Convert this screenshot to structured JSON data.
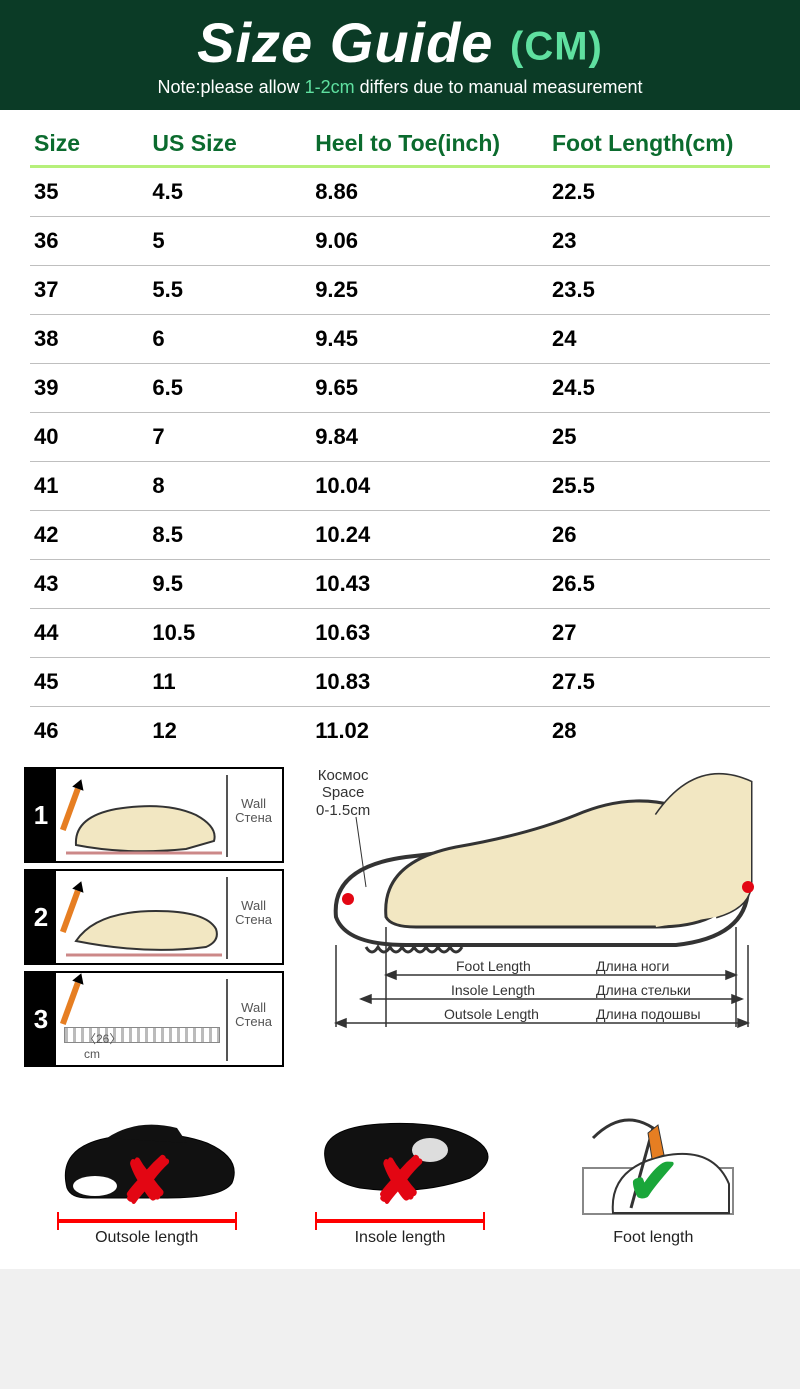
{
  "colors": {
    "header_bg": "#0b3b26",
    "header_fg": "#ffffff",
    "unit_fg": "#5fe0a0",
    "accent_green": "#5fe0a0",
    "th_color": "#0b6b2e",
    "th_underline": "#b6f07a",
    "row_border": "#bfbfbf",
    "x_red": "#e30613",
    "v_green": "#1aa63a",
    "foot_fill": "#f2e7c2",
    "shoe_outline": "#333333",
    "insole_fill": "#111111"
  },
  "header": {
    "title": "Size Guide",
    "unit": "(CM)",
    "note_prefix": "Note:please allow ",
    "note_accent": "1-2cm",
    "note_suffix": " differs due to manual measurement"
  },
  "table": {
    "columns": [
      "Size",
      "US Size",
      "Heel to Toe(inch)",
      "Foot Length(cm)"
    ],
    "col_widths": [
      "16%",
      "22%",
      "32%",
      "30%"
    ],
    "rows": [
      [
        "35",
        "4.5",
        "8.86",
        "22.5"
      ],
      [
        "36",
        "5",
        "9.06",
        "23"
      ],
      [
        "37",
        "5.5",
        "9.25",
        "23.5"
      ],
      [
        "38",
        "6",
        "9.45",
        "24"
      ],
      [
        "39",
        "6.5",
        "9.65",
        "24.5"
      ],
      [
        "40",
        "7",
        "9.84",
        "25"
      ],
      [
        "41",
        "8",
        "10.04",
        "25.5"
      ],
      [
        "42",
        "8.5",
        "10.24",
        "26"
      ],
      [
        "43",
        "9.5",
        "10.43",
        "26.5"
      ],
      [
        "44",
        "10.5",
        "10.63",
        "27"
      ],
      [
        "45",
        "11",
        "10.83",
        "27.5"
      ],
      [
        "46",
        "12",
        "11.02",
        "28"
      ]
    ]
  },
  "diagrams": {
    "steps": [
      {
        "num": "1",
        "wall_en": "Wall",
        "wall_ru": "Стена"
      },
      {
        "num": "2",
        "wall_en": "Wall",
        "wall_ru": "Стена"
      },
      {
        "num": "3",
        "wall_en": "Wall",
        "wall_ru": "Стена",
        "tape_cm": "26"
      }
    ],
    "space_ru": "Космос",
    "space_en": "Space",
    "space_range": "0-1.5cm",
    "labels": {
      "foot_en": "Foot Length",
      "foot_ru": "Длина ноги",
      "insole_en": "Insole Length",
      "insole_ru": "Длина стельки",
      "outsole_en": "Outsole Length",
      "outsole_ru": "Длина подошвы"
    }
  },
  "bottom": {
    "items": [
      {
        "kind": "outsole",
        "mark": "x",
        "caption": "Outsole length"
      },
      {
        "kind": "insole",
        "mark": "x",
        "caption": "Insole length"
      },
      {
        "kind": "foot",
        "mark": "v",
        "caption": "Foot length"
      }
    ]
  }
}
